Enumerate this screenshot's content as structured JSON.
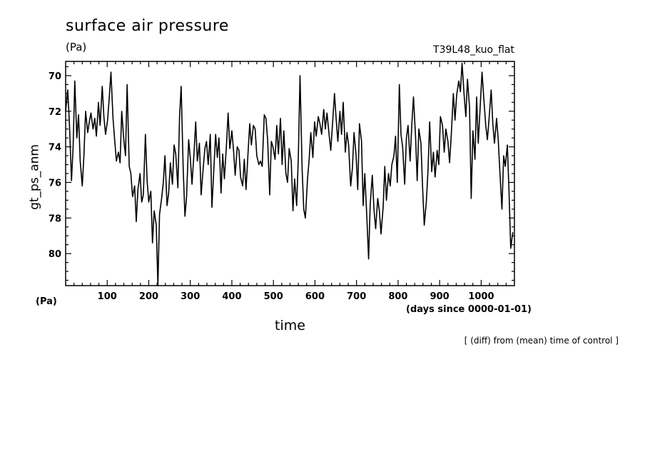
{
  "chart_data": {
    "type": "line",
    "title": "surface air pressure",
    "units_top": "(Pa)",
    "run_label": "T39L48_kuo_flat",
    "units_bottom": "(Pa)",
    "xlabel": "time",
    "xunits": "(days since 0000-01-01)",
    "ylabel": "gt_ps_anm",
    "note": "[ (diff) from (mean) time of control ]",
    "xlim": [
      0,
      1080
    ],
    "ylim": [
      69.2,
      81.8
    ],
    "y_inverted": true,
    "xticks": [
      100,
      200,
      300,
      400,
      500,
      600,
      700,
      800,
      900,
      1000
    ],
    "yticks": [
      70,
      72,
      74,
      76,
      78,
      80
    ],
    "series": [
      {
        "values": [
          [
            0,
            72.0
          ],
          [
            5,
            70.8
          ],
          [
            9,
            72.6
          ],
          [
            14,
            75.9
          ],
          [
            18,
            74.0
          ],
          [
            22,
            70.3
          ],
          [
            27,
            73.5
          ],
          [
            31,
            72.2
          ],
          [
            35,
            74.8
          ],
          [
            40,
            76.2
          ],
          [
            44,
            74.5
          ],
          [
            48,
            72.0
          ],
          [
            53,
            73.2
          ],
          [
            57,
            72.6
          ],
          [
            61,
            72.1
          ],
          [
            66,
            73.0
          ],
          [
            70,
            72.4
          ],
          [
            74,
            73.4
          ],
          [
            79,
            71.5
          ],
          [
            83,
            72.8
          ],
          [
            88,
            70.6
          ],
          [
            92,
            72.3
          ],
          [
            96,
            73.3
          ],
          [
            101,
            72.5
          ],
          [
            105,
            71.2
          ],
          [
            109,
            69.8
          ],
          [
            114,
            72.4
          ],
          [
            118,
            73.6
          ],
          [
            122,
            74.8
          ],
          [
            127,
            74.3
          ],
          [
            131,
            74.9
          ],
          [
            135,
            72.0
          ],
          [
            140,
            73.6
          ],
          [
            144,
            74.5
          ],
          [
            148,
            70.5
          ],
          [
            153,
            75.1
          ],
          [
            157,
            75.5
          ],
          [
            161,
            76.8
          ],
          [
            166,
            76.2
          ],
          [
            170,
            78.2
          ],
          [
            174,
            76.4
          ],
          [
            179,
            75.5
          ],
          [
            183,
            77.1
          ],
          [
            187,
            76.7
          ],
          [
            192,
            73.3
          ],
          [
            196,
            75.9
          ],
          [
            200,
            77.1
          ],
          [
            205,
            76.5
          ],
          [
            209,
            79.4
          ],
          [
            213,
            77.6
          ],
          [
            218,
            78.4
          ],
          [
            222,
            81.8
          ],
          [
            226,
            77.8
          ],
          [
            231,
            76.9
          ],
          [
            235,
            76.0
          ],
          [
            239,
            74.5
          ],
          [
            244,
            77.3
          ],
          [
            248,
            76.6
          ],
          [
            252,
            74.9
          ],
          [
            257,
            76.1
          ],
          [
            261,
            73.9
          ],
          [
            265,
            74.4
          ],
          [
            270,
            76.3
          ],
          [
            274,
            72.4
          ],
          [
            278,
            70.6
          ],
          [
            283,
            75.3
          ],
          [
            287,
            77.9
          ],
          [
            291,
            76.8
          ],
          [
            296,
            73.6
          ],
          [
            300,
            74.6
          ],
          [
            304,
            76.1
          ],
          [
            309,
            74.3
          ],
          [
            313,
            72.6
          ],
          [
            317,
            74.8
          ],
          [
            322,
            73.8
          ],
          [
            326,
            76.7
          ],
          [
            330,
            75.5
          ],
          [
            335,
            74.1
          ],
          [
            339,
            73.7
          ],
          [
            343,
            75.0
          ],
          [
            348,
            73.3
          ],
          [
            352,
            77.4
          ],
          [
            356,
            75.6
          ],
          [
            361,
            73.3
          ],
          [
            365,
            74.6
          ],
          [
            369,
            73.5
          ],
          [
            374,
            76.6
          ],
          [
            378,
            74.4
          ],
          [
            382,
            75.8
          ],
          [
            387,
            73.9
          ],
          [
            391,
            72.1
          ],
          [
            395,
            74.1
          ],
          [
            400,
            73.1
          ],
          [
            404,
            74.2
          ],
          [
            408,
            75.6
          ],
          [
            413,
            74.0
          ],
          [
            417,
            74.2
          ],
          [
            421,
            75.7
          ],
          [
            426,
            76.2
          ],
          [
            430,
            74.7
          ],
          [
            434,
            76.4
          ],
          [
            439,
            74.3
          ],
          [
            443,
            72.7
          ],
          [
            447,
            73.9
          ],
          [
            452,
            72.8
          ],
          [
            456,
            73.0
          ],
          [
            460,
            74.5
          ],
          [
            465,
            75.0
          ],
          [
            469,
            74.8
          ],
          [
            473,
            75.1
          ],
          [
            478,
            72.2
          ],
          [
            482,
            72.4
          ],
          [
            486,
            73.6
          ],
          [
            491,
            76.7
          ],
          [
            495,
            73.7
          ],
          [
            499,
            74.0
          ],
          [
            504,
            74.7
          ],
          [
            508,
            72.8
          ],
          [
            512,
            74.4
          ],
          [
            517,
            72.4
          ],
          [
            521,
            75.0
          ],
          [
            525,
            73.1
          ],
          [
            530,
            75.5
          ],
          [
            534,
            76.0
          ],
          [
            538,
            74.1
          ],
          [
            543,
            74.8
          ],
          [
            547,
            77.6
          ],
          [
            551,
            75.8
          ],
          [
            556,
            77.3
          ],
          [
            560,
            74.6
          ],
          [
            564,
            70.0
          ],
          [
            569,
            75.2
          ],
          [
            573,
            77.5
          ],
          [
            577,
            78.0
          ],
          [
            582,
            75.8
          ],
          [
            586,
            74.7
          ],
          [
            590,
            73.2
          ],
          [
            595,
            74.6
          ],
          [
            599,
            72.6
          ],
          [
            603,
            73.4
          ],
          [
            608,
            72.3
          ],
          [
            612,
            72.7
          ],
          [
            616,
            73.3
          ],
          [
            621,
            71.9
          ],
          [
            625,
            73.0
          ],
          [
            629,
            72.1
          ],
          [
            634,
            73.3
          ],
          [
            638,
            74.2
          ],
          [
            642,
            72.8
          ],
          [
            647,
            71.0
          ],
          [
            651,
            72.4
          ],
          [
            655,
            73.7
          ],
          [
            660,
            72.0
          ],
          [
            664,
            73.3
          ],
          [
            668,
            71.5
          ],
          [
            673,
            74.3
          ],
          [
            677,
            73.2
          ],
          [
            681,
            73.9
          ],
          [
            686,
            76.2
          ],
          [
            690,
            75.2
          ],
          [
            694,
            73.2
          ],
          [
            699,
            74.5
          ],
          [
            703,
            76.4
          ],
          [
            707,
            72.7
          ],
          [
            712,
            73.7
          ],
          [
            716,
            77.3
          ],
          [
            720,
            75.5
          ],
          [
            725,
            78.0
          ],
          [
            729,
            80.3
          ],
          [
            733,
            77.2
          ],
          [
            738,
            75.6
          ],
          [
            742,
            77.5
          ],
          [
            746,
            78.6
          ],
          [
            751,
            76.9
          ],
          [
            755,
            77.6
          ],
          [
            759,
            78.9
          ],
          [
            764,
            77.4
          ],
          [
            768,
            75.1
          ],
          [
            772,
            77.0
          ],
          [
            777,
            75.5
          ],
          [
            781,
            76.2
          ],
          [
            785,
            75.0
          ],
          [
            790,
            74.5
          ],
          [
            794,
            73.4
          ],
          [
            798,
            76.0
          ],
          [
            803,
            70.5
          ],
          [
            807,
            73.3
          ],
          [
            811,
            74.0
          ],
          [
            816,
            76.1
          ],
          [
            820,
            73.5
          ],
          [
            824,
            72.8
          ],
          [
            829,
            74.8
          ],
          [
            833,
            72.8
          ],
          [
            837,
            71.2
          ],
          [
            842,
            73.4
          ],
          [
            846,
            75.9
          ],
          [
            850,
            73.0
          ],
          [
            855,
            73.8
          ],
          [
            859,
            76.3
          ],
          [
            863,
            78.4
          ],
          [
            868,
            77.1
          ],
          [
            872,
            75.3
          ],
          [
            876,
            72.6
          ],
          [
            881,
            75.4
          ],
          [
            885,
            74.3
          ],
          [
            889,
            75.7
          ],
          [
            894,
            74.2
          ],
          [
            898,
            75.0
          ],
          [
            902,
            72.3
          ],
          [
            907,
            72.8
          ],
          [
            911,
            74.3
          ],
          [
            915,
            73.0
          ],
          [
            920,
            73.7
          ],
          [
            924,
            74.9
          ],
          [
            928,
            73.3
          ],
          [
            933,
            71.0
          ],
          [
            937,
            72.5
          ],
          [
            941,
            71.1
          ],
          [
            946,
            70.3
          ],
          [
            950,
            70.9
          ],
          [
            954,
            69.3
          ],
          [
            959,
            71.1
          ],
          [
            963,
            72.3
          ],
          [
            967,
            70.2
          ],
          [
            972,
            71.8
          ],
          [
            976,
            76.9
          ],
          [
            980,
            73.1
          ],
          [
            985,
            74.7
          ],
          [
            989,
            71.2
          ],
          [
            993,
            73.8
          ],
          [
            998,
            71.6
          ],
          [
            1002,
            69.8
          ],
          [
            1006,
            71.2
          ],
          [
            1011,
            72.8
          ],
          [
            1015,
            73.6
          ],
          [
            1019,
            72.4
          ],
          [
            1024,
            70.8
          ],
          [
            1028,
            72.7
          ],
          [
            1032,
            73.8
          ],
          [
            1037,
            72.4
          ],
          [
            1041,
            73.6
          ],
          [
            1045,
            75.4
          ],
          [
            1050,
            77.5
          ],
          [
            1054,
            74.5
          ],
          [
            1058,
            75.1
          ],
          [
            1063,
            73.9
          ],
          [
            1067,
            76.5
          ],
          [
            1071,
            79.7
          ],
          [
            1076,
            78.8
          ]
        ]
      }
    ]
  }
}
